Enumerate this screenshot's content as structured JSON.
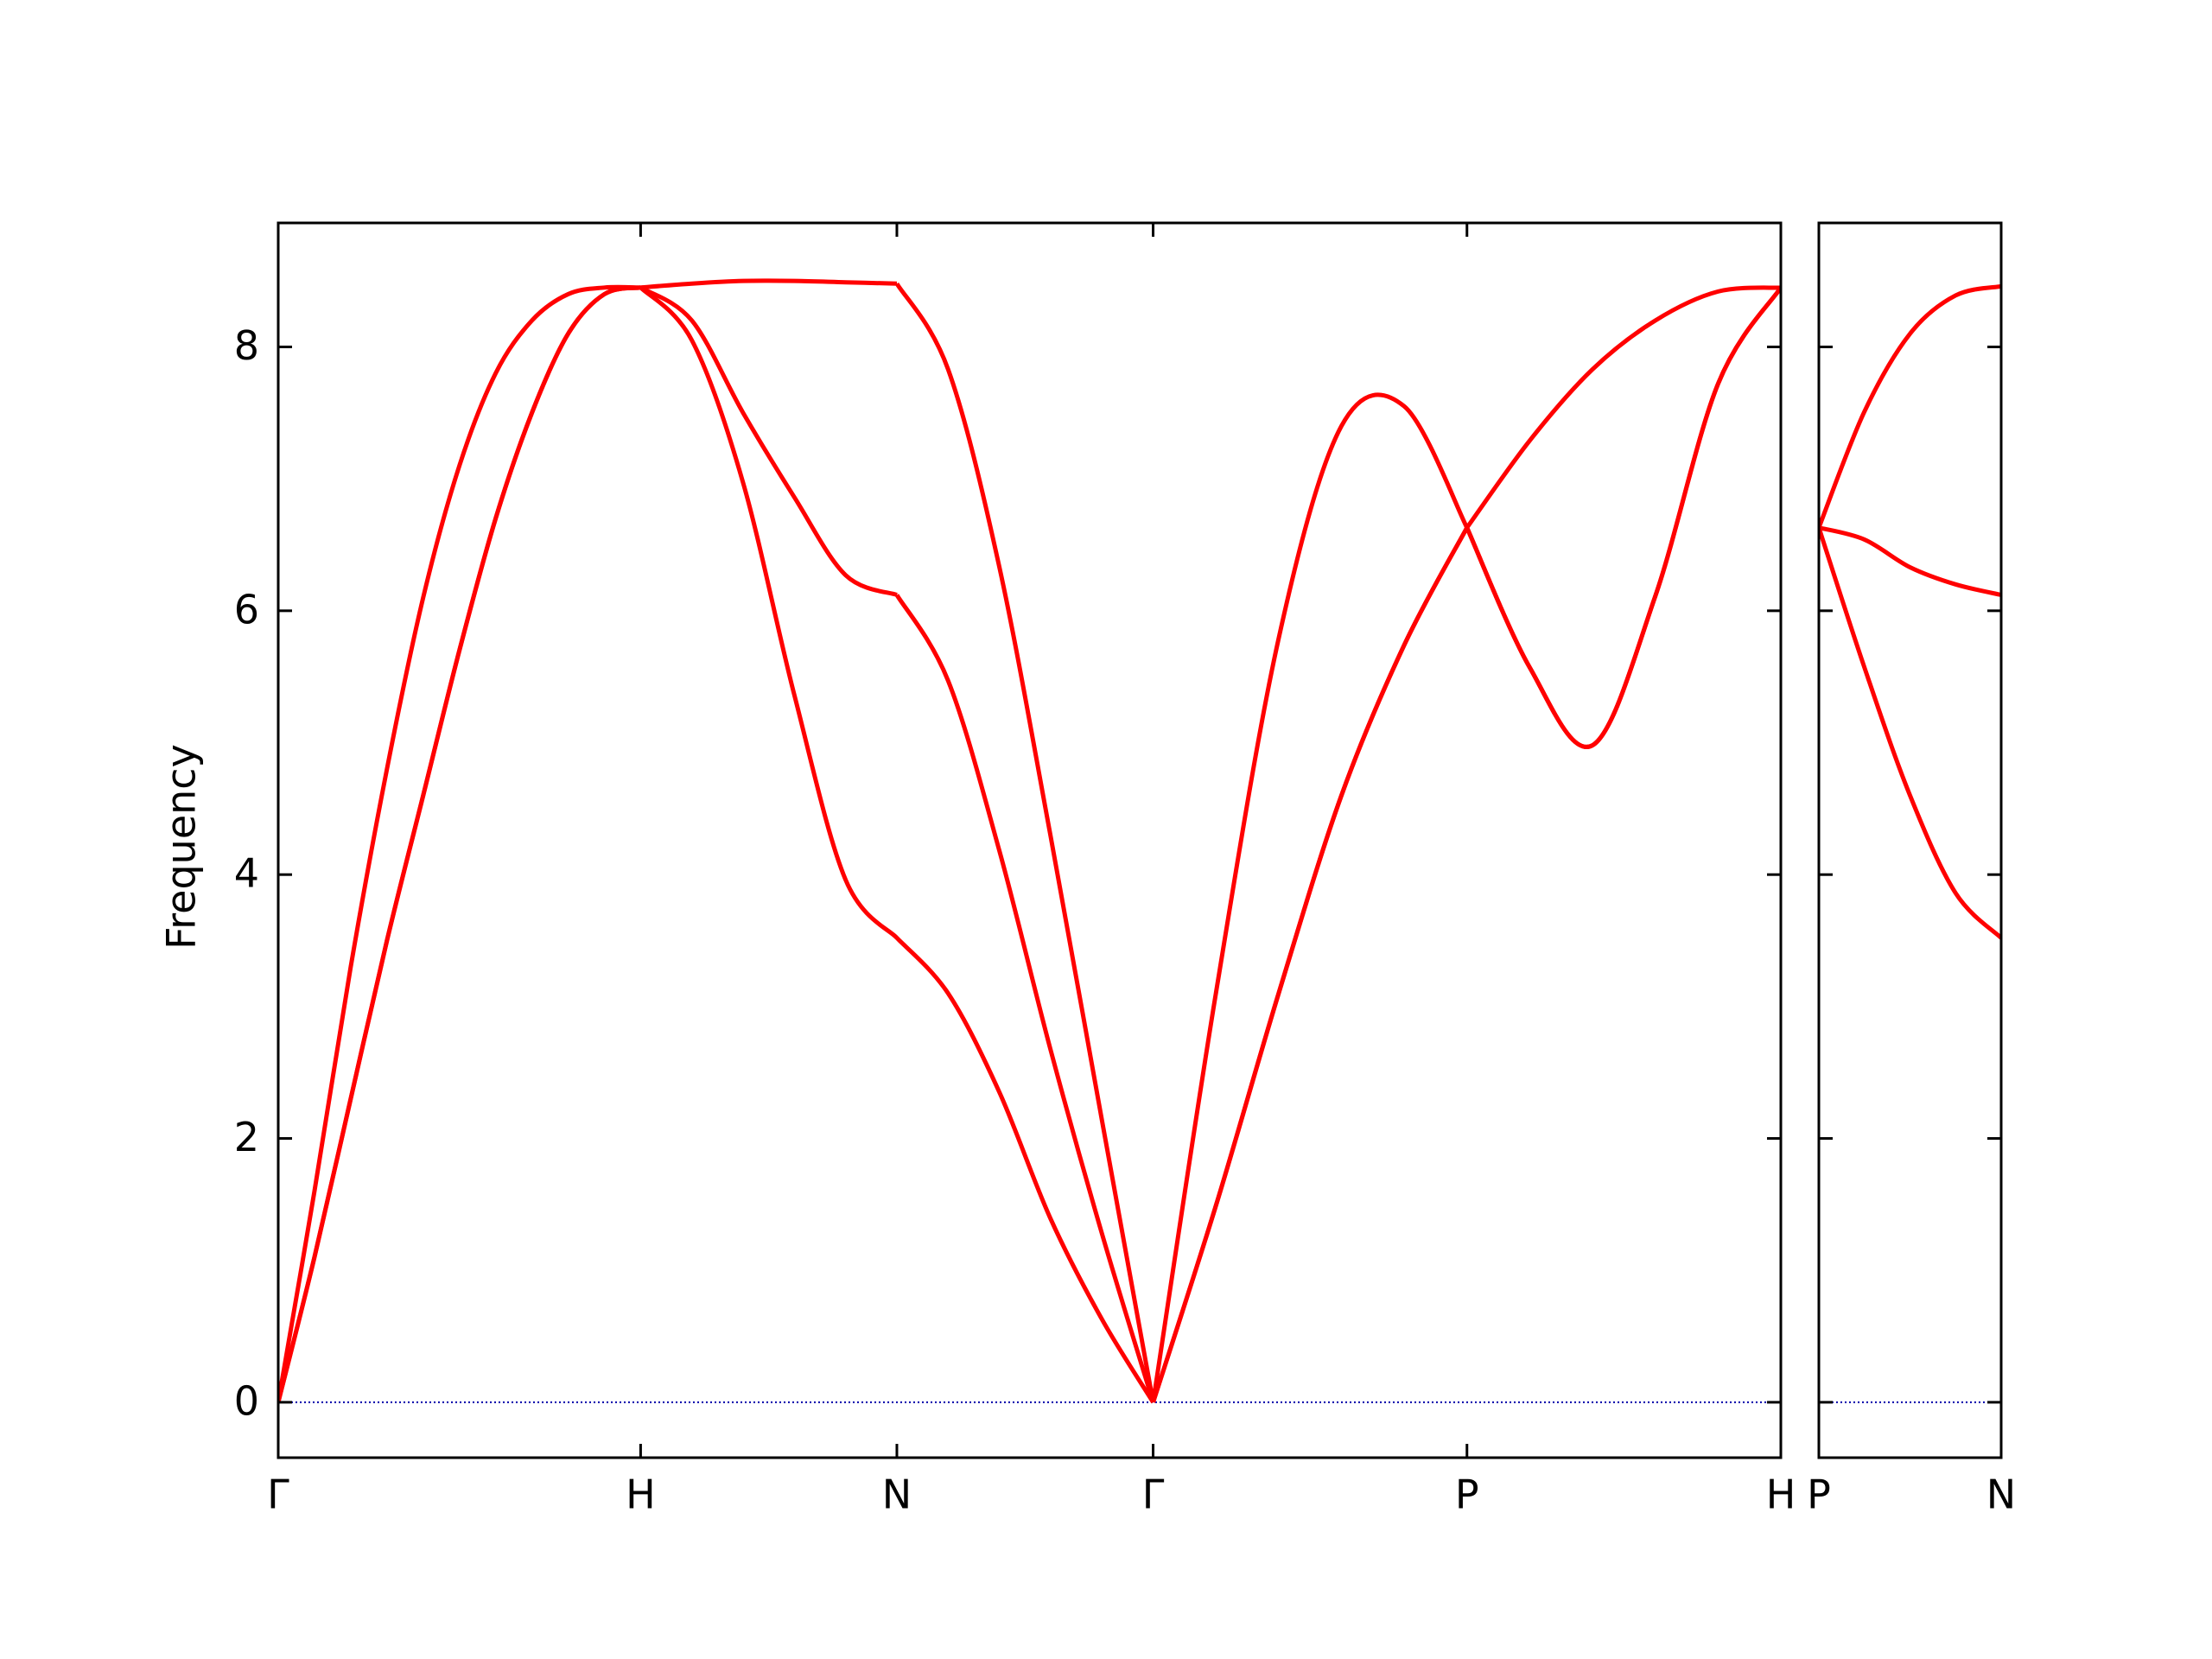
{
  "chart_data": [
    {
      "type": "line",
      "ylabel": "Frequency",
      "x": [
        0,
        0.1,
        0.2,
        0.3,
        0.4,
        0.5,
        0.6,
        0.7,
        0.8,
        0.9,
        1.0,
        1.1414,
        1.2828,
        1.4243,
        1.5657,
        1.7071,
        1.8485,
        1.99,
        2.1314,
        2.2728,
        2.4142,
        2.5874,
        2.7606,
        2.9338,
        3.107,
        3.2802,
        3.4534,
        3.6266,
        3.7998,
        3.973,
        4.1463
      ],
      "series": [
        {
          "color": "#ff0000",
          "values": [
            0,
            1.1,
            2.3,
            3.5,
            4.6,
            5.7,
            6.7,
            7.5,
            8.1,
            8.4,
            8.45,
            8.05,
            6.97,
            5.36,
            3.96,
            3.52,
            3.1,
            2.35,
            1.39,
            0.63,
            0,
            1.49,
            3.1,
            4.6,
            5.74,
            6.63,
            5.57,
            4.98,
            6.11,
            7.72,
            8.45
          ]
        },
        {
          "color": "#ff0000",
          "values": [
            0,
            1.1,
            2.3,
            3.5,
            4.6,
            5.7,
            6.7,
            7.5,
            8.1,
            8.4,
            8.45,
            8.2,
            7.5,
            6.86,
            6.27,
            6.12,
            5.47,
            4.18,
            2.67,
            1.28,
            0,
            1.49,
            3.1,
            4.6,
            5.74,
            6.63,
            5.57,
            4.98,
            6.11,
            7.72,
            8.45
          ]
        },
        {
          "color": "#ff0000",
          "values": [
            0,
            1.6,
            3.3,
            4.8,
            6.1,
            7.1,
            7.8,
            8.2,
            8.4,
            8.45,
            8.45,
            8.48,
            8.5,
            8.5,
            8.49,
            8.48,
            7.83,
            6.33,
            4.29,
            2.14,
            0,
            3.1,
            5.79,
            7.4,
            7.55,
            6.63,
            7.29,
            7.83,
            8.2,
            8.42,
            8.45
          ]
        }
      ],
      "xlim": [
        0,
        4.1463
      ],
      "xticks": [
        {
          "value": 0,
          "label": "Γ"
        },
        {
          "value": 1.0,
          "label": "H"
        },
        {
          "value": 1.7071,
          "label": "N"
        },
        {
          "value": 2.4142,
          "label": "Γ"
        },
        {
          "value": 3.2802,
          "label": "P"
        },
        {
          "value": 4.1463,
          "label": "H"
        }
      ],
      "ylim": [
        -0.42,
        8.94
      ],
      "yticks": [
        0,
        2,
        4,
        6,
        8
      ],
      "hline": {
        "value": 0,
        "color": "#0000aa",
        "style": "dotted"
      }
    },
    {
      "type": "line",
      "x": [
        3.2802,
        3.4052,
        3.5302,
        3.6552,
        3.7802
      ],
      "series": [
        {
          "color": "#ff0000",
          "values": [
            6.63,
            5.57,
            4.6,
            3.86,
            3.52
          ]
        },
        {
          "color": "#ff0000",
          "values": [
            6.63,
            6.54,
            6.33,
            6.2,
            6.12
          ]
        },
        {
          "color": "#ff0000",
          "values": [
            6.63,
            7.51,
            8.1,
            8.39,
            8.46
          ]
        }
      ],
      "xlim": [
        3.2802,
        3.7802
      ],
      "xticks": [
        {
          "value": 3.2802,
          "label": "P"
        },
        {
          "value": 3.7802,
          "label": "N"
        }
      ],
      "ylim": [
        -0.42,
        8.94
      ],
      "yticks": [
        0,
        2,
        4,
        6,
        8
      ],
      "show_ytick_labels": false,
      "hline": {
        "value": 0,
        "color": "#0000aa",
        "style": "dotted"
      }
    }
  ]
}
